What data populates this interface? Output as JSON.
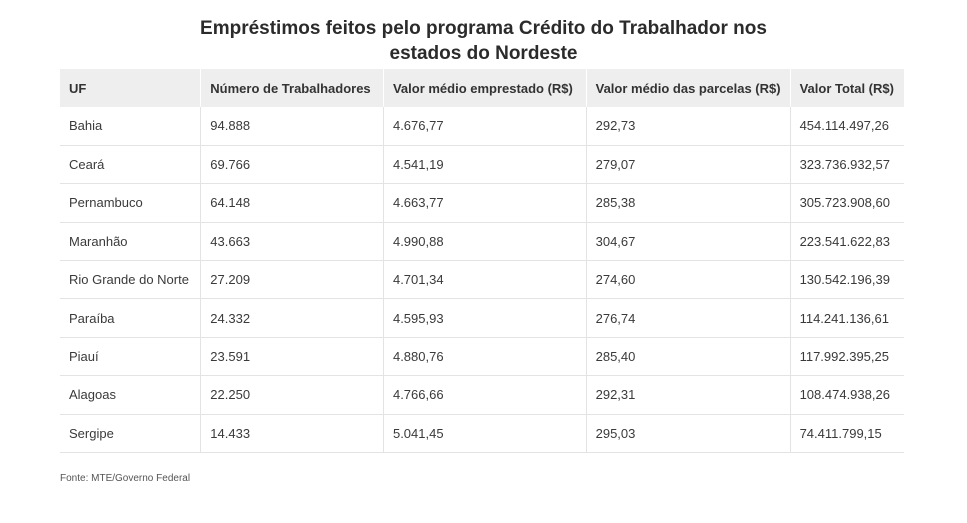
{
  "chart_data": {
    "type": "table",
    "title_lines": [
      "Empréstimos feitos pelo programa Crédito do Trabalhador nos",
      "estados do Nordeste"
    ],
    "columns": [
      "UF",
      "Número de Trabalhadores",
      "Valor médio emprestado (R$)",
      "Valor médio das parcelas (R$)",
      "Valor Total (R$)"
    ],
    "rows": [
      [
        "Bahia",
        "94.888",
        "4.676,77",
        "292,73",
        "454.114.497,26"
      ],
      [
        "Ceará",
        "69.766",
        "4.541,19",
        "279,07",
        "323.736.932,57"
      ],
      [
        "Pernambuco",
        "64.148",
        "4.663,77",
        "285,38",
        "305.723.908,60"
      ],
      [
        "Maranhão",
        "43.663",
        "4.990,88",
        "304,67",
        "223.541.622,83"
      ],
      [
        "Rio Grande do Norte",
        "27.209",
        "4.701,34",
        "274,60",
        "130.542.196,39"
      ],
      [
        "Paraíba",
        "24.332",
        "4.595,93",
        "276,74",
        "114.241.136,61"
      ],
      [
        "Piauí",
        "23.591",
        "4.880,76",
        "285,40",
        "117.992.395,25"
      ],
      [
        "Alagoas",
        "22.250",
        "4.766,66",
        "292,31",
        "108.474.938,26"
      ],
      [
        "Sergipe",
        "14.433",
        "5.041,45",
        "295,03",
        "74.411.799,15"
      ]
    ],
    "source": "Fonte: MTE/Governo Federal"
  },
  "colors": {
    "header_bg": "#eeeeee",
    "row_border": "#e3e3e3",
    "text": "#333333"
  }
}
